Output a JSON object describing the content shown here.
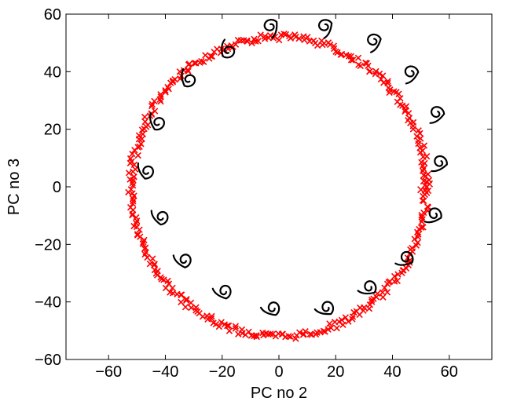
{
  "chart_data": {
    "type": "scatter",
    "title": "",
    "xlabel": "PC no 2",
    "ylabel": "PC no 3",
    "xlim": [
      -75,
      75
    ],
    "ylim": [
      -60,
      60
    ],
    "xticks": [
      -60,
      -40,
      -20,
      0,
      20,
      40,
      60
    ],
    "yticks": [
      -60,
      -40,
      -20,
      0,
      20,
      40,
      60
    ],
    "xtick_labels": [
      "−60",
      "−40",
      "−20",
      "0",
      "20",
      "40",
      "60"
    ],
    "ytick_labels": [
      "−60",
      "−40",
      "−20",
      "0",
      "20",
      "40",
      "60"
    ],
    "grid": false,
    "legend": "none",
    "marker": "x",
    "marker_color": "#ff0000",
    "series": [
      {
        "values": "projected data points on a ring of radius about 52 around the origin",
        "radius": 52,
        "center": [
          0,
          0
        ],
        "count": 360
      }
    ],
    "digit_thumbnails": {
      "glyph": "9 / 6 handwritten digit images rotating around the ring",
      "color": "#000000",
      "positions": [
        [
          -3,
          55
        ],
        [
          16,
          55
        ],
        [
          33,
          50
        ],
        [
          46,
          39
        ],
        [
          55,
          25
        ],
        [
          56,
          8
        ],
        [
          54,
          -10
        ],
        [
          44,
          -25
        ],
        [
          31,
          -35
        ],
        [
          16,
          -42
        ],
        [
          -3,
          -42
        ],
        [
          -20,
          -36
        ],
        [
          -34,
          -25
        ],
        [
          -42,
          -10
        ],
        [
          -47,
          6
        ],
        [
          -43,
          23
        ],
        [
          -32,
          38
        ],
        [
          -18,
          48
        ]
      ]
    }
  }
}
